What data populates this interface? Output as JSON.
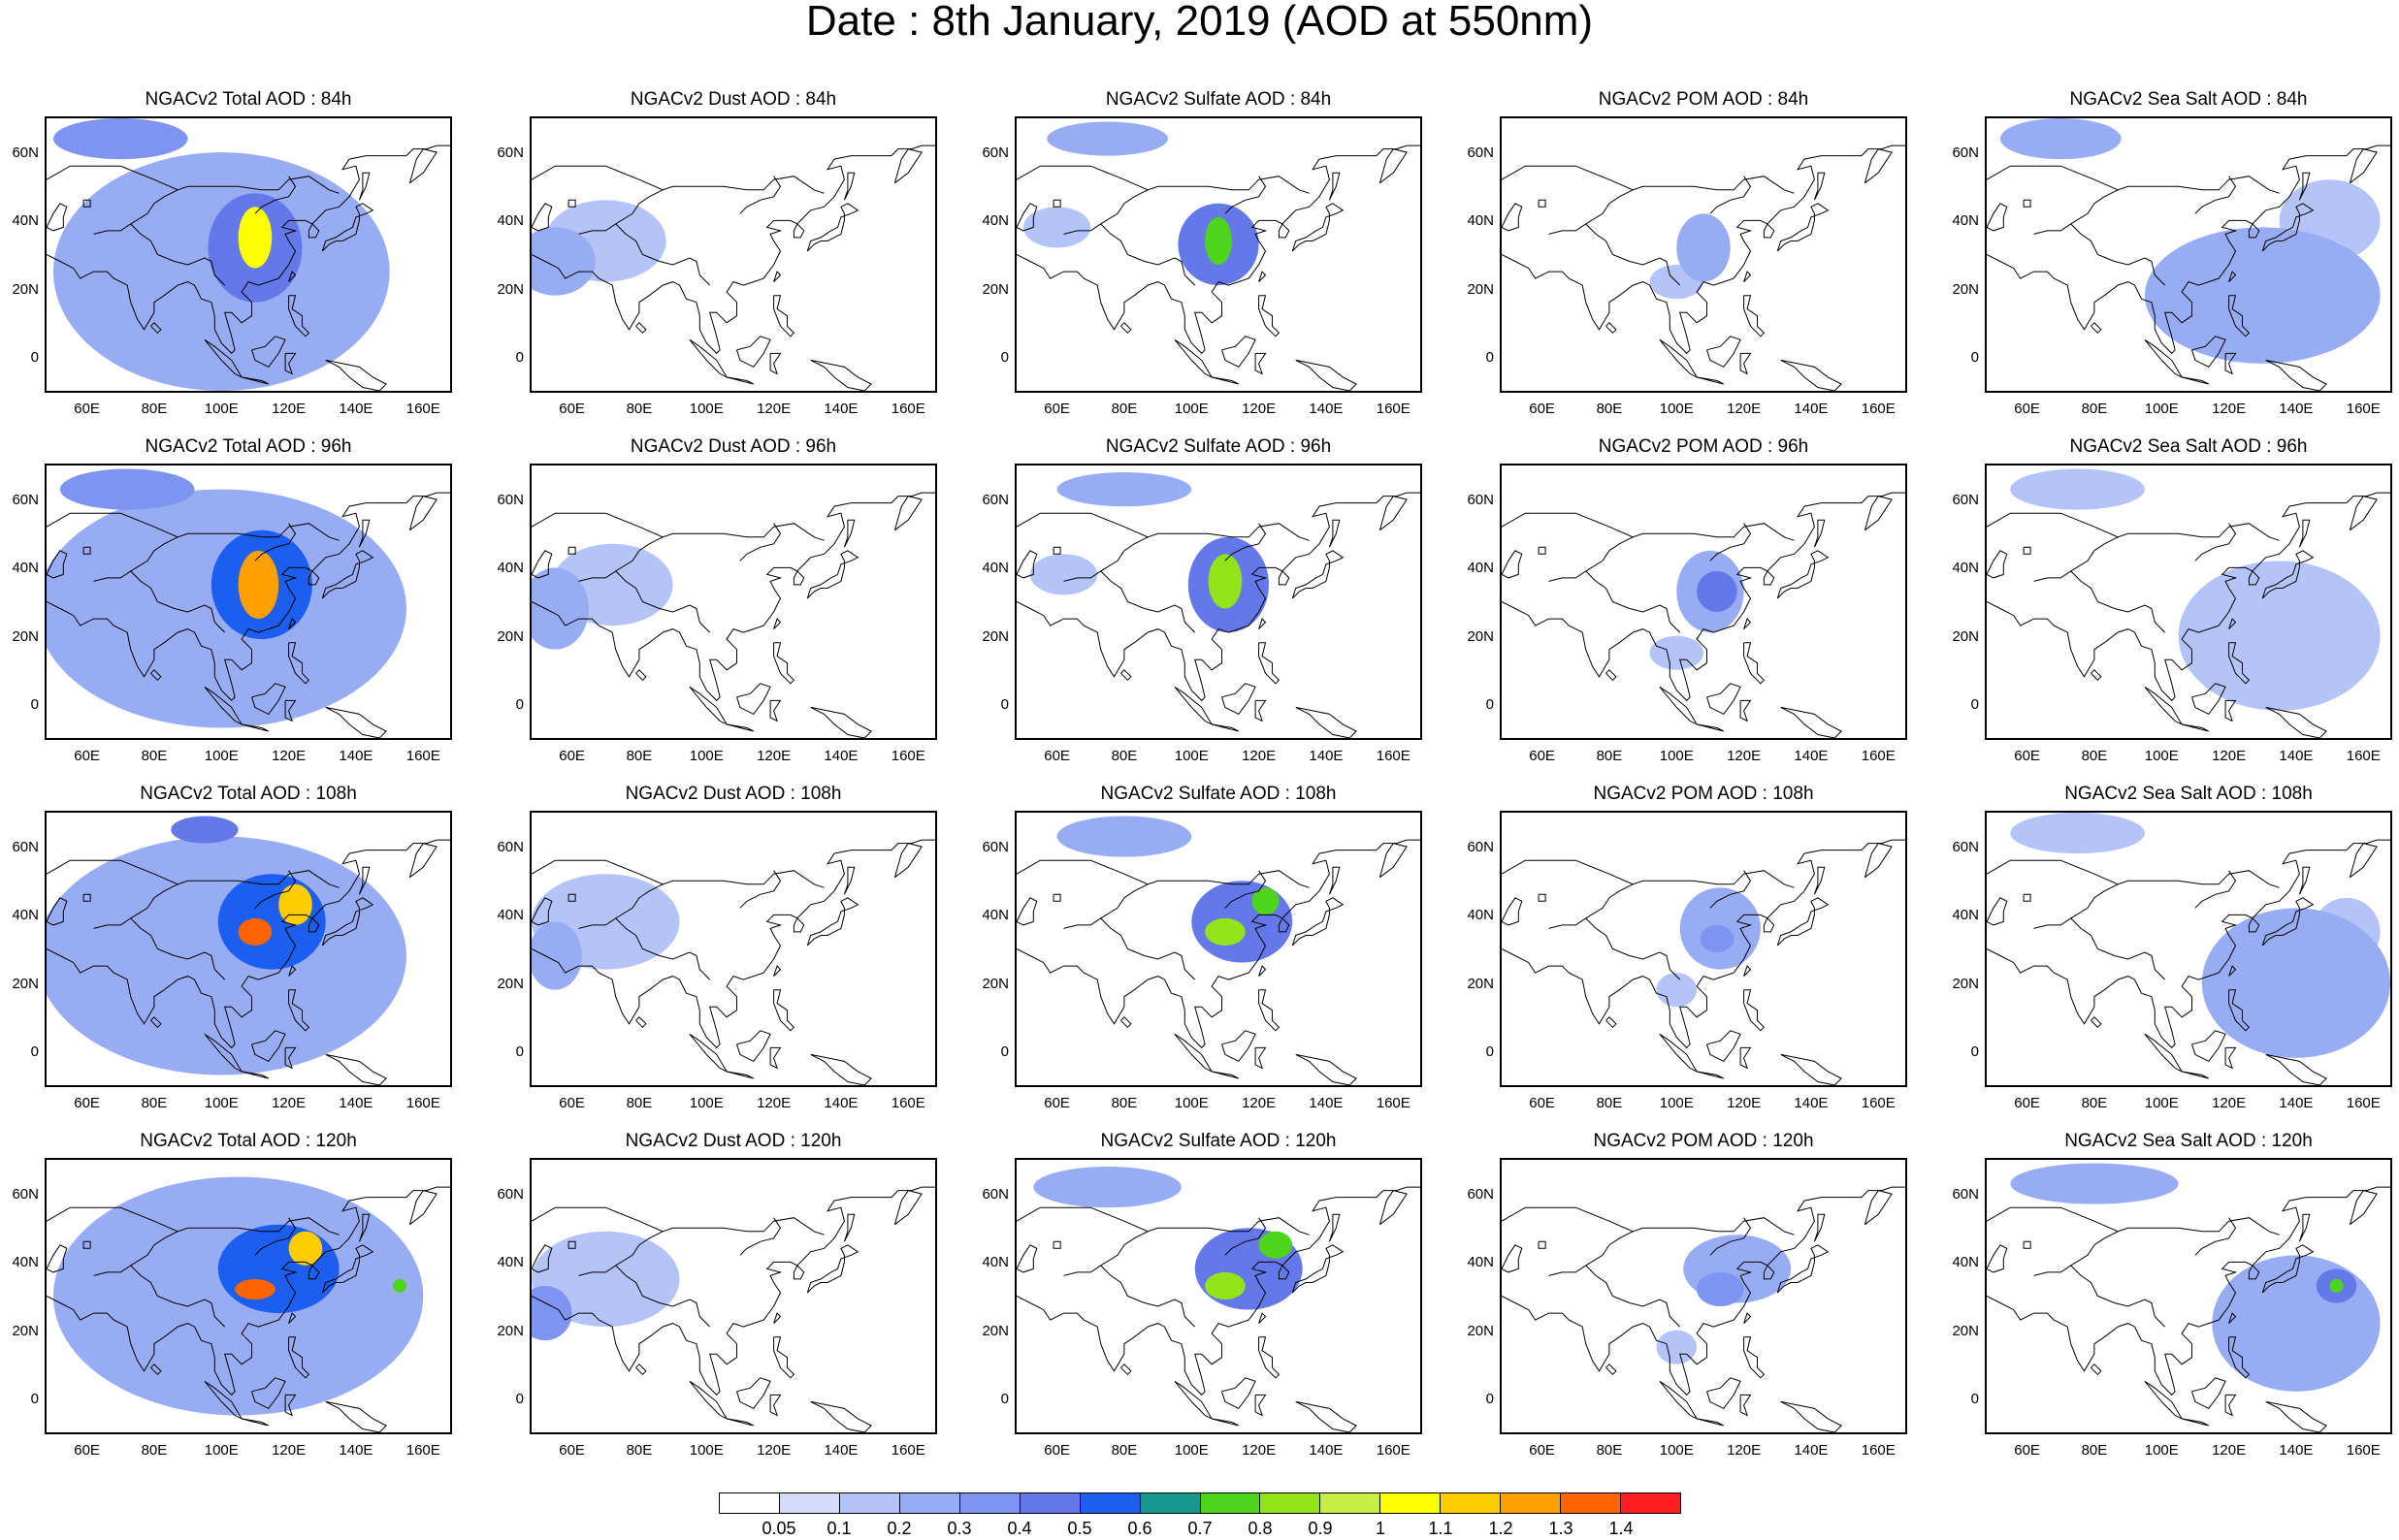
{
  "title": "Date : 8th January, 2019 (AOD at 550nm)",
  "lat_labels": [
    "60N",
    "40N",
    "20N",
    "0"
  ],
  "lon_labels": [
    "60E",
    "80E",
    "100E",
    "120E",
    "140E",
    "160E"
  ],
  "panels": [
    {
      "title": "NGACv2 Total AOD : 84h",
      "species": "total",
      "lead": 84
    },
    {
      "title": "NGACv2 Dust AOD : 84h",
      "species": "dust",
      "lead": 84
    },
    {
      "title": "NGACv2 Sulfate AOD : 84h",
      "species": "sulfate",
      "lead": 84
    },
    {
      "title": "NGACv2 POM AOD : 84h",
      "species": "pom",
      "lead": 84
    },
    {
      "title": "NGACv2 Sea Salt AOD : 84h",
      "species": "seasalt",
      "lead": 84
    },
    {
      "title": "NGACv2 Total AOD : 96h",
      "species": "total",
      "lead": 96
    },
    {
      "title": "NGACv2 Dust AOD : 96h",
      "species": "dust",
      "lead": 96
    },
    {
      "title": "NGACv2 Sulfate AOD : 96h",
      "species": "sulfate",
      "lead": 96
    },
    {
      "title": "NGACv2 POM AOD : 96h",
      "species": "pom",
      "lead": 96
    },
    {
      "title": "NGACv2 Sea Salt AOD : 96h",
      "species": "seasalt",
      "lead": 96
    },
    {
      "title": "NGACv2 Total AOD : 108h",
      "species": "total",
      "lead": 108
    },
    {
      "title": "NGACv2 Dust AOD : 108h",
      "species": "dust",
      "lead": 108
    },
    {
      "title": "NGACv2 Sulfate AOD : 108h",
      "species": "sulfate",
      "lead": 108
    },
    {
      "title": "NGACv2 POM AOD : 108h",
      "species": "pom",
      "lead": 108
    },
    {
      "title": "NGACv2 Sea Salt AOD : 108h",
      "species": "seasalt",
      "lead": 108
    },
    {
      "title": "NGACv2 Total AOD : 120h",
      "species": "total",
      "lead": 120
    },
    {
      "title": "NGACv2 Dust AOD : 120h",
      "species": "dust",
      "lead": 120
    },
    {
      "title": "NGACv2 Sulfate AOD : 120h",
      "species": "sulfate",
      "lead": 120
    },
    {
      "title": "NGACv2 POM AOD : 120h",
      "species": "pom",
      "lead": 120
    },
    {
      "title": "NGACv2 Sea Salt  AOD : 120h",
      "species": "seasalt",
      "lead": 120
    }
  ],
  "colorbar": {
    "labels": [
      "0.05",
      "0.1",
      "0.2",
      "0.3",
      "0.4",
      "0.5",
      "0.6",
      "0.7",
      "0.8",
      "0.9",
      "1",
      "1.1",
      "1.2",
      "1.3",
      "1.4"
    ],
    "colors": [
      "#ffffff",
      "#d4dcfa",
      "#b4c4f8",
      "#98acf4",
      "#7e94f0",
      "#6578ea",
      "#1c5ef0",
      "#18988c",
      "#4ed41a",
      "#92e418",
      "#c8ee46",
      "#ffff00",
      "#ffcc00",
      "#ffa000",
      "#ff6400",
      "#ff1e1e"
    ]
  },
  "map": {
    "projection": "cylindrical equidistant",
    "lon_range": [
      48,
      168
    ],
    "lat_range": [
      -10,
      70
    ],
    "coastline_color": "#000000",
    "grid": false
  },
  "features": {
    "total": {
      "84": [
        {
          "lon": 110,
          "lat": 35,
          "rx": 5,
          "ry": 9,
          "v": 1.0
        },
        {
          "lon": 110,
          "lat": 32,
          "rx": 14,
          "ry": 16,
          "v": 0.45
        },
        {
          "lon": 100,
          "lat": 25,
          "rx": 50,
          "ry": 35,
          "v": 0.22
        },
        {
          "lon": 70,
          "lat": 64,
          "rx": 20,
          "ry": 6,
          "v": 0.38
        }
      ],
      "96": [
        {
          "lon": 111,
          "lat": 35,
          "rx": 6,
          "ry": 10,
          "v": 1.2
        },
        {
          "lon": 112,
          "lat": 35,
          "rx": 15,
          "ry": 16,
          "v": 0.55
        },
        {
          "lon": 100,
          "lat": 28,
          "rx": 55,
          "ry": 35,
          "v": 0.25
        },
        {
          "lon": 72,
          "lat": 63,
          "rx": 20,
          "ry": 6,
          "v": 0.35
        }
      ],
      "108": [
        {
          "lon": 110,
          "lat": 35,
          "rx": 5,
          "ry": 4,
          "v": 1.35
        },
        {
          "lon": 122,
          "lat": 43,
          "rx": 5,
          "ry": 6,
          "v": 1.1
        },
        {
          "lon": 115,
          "lat": 38,
          "rx": 16,
          "ry": 14,
          "v": 0.55
        },
        {
          "lon": 100,
          "lat": 28,
          "rx": 55,
          "ry": 35,
          "v": 0.25
        },
        {
          "lon": 95,
          "lat": 65,
          "rx": 10,
          "ry": 4,
          "v": 0.4
        }
      ],
      "120": [
        {
          "lon": 110,
          "lat": 32,
          "rx": 6,
          "ry": 3,
          "v": 1.35
        },
        {
          "lon": 125,
          "lat": 44,
          "rx": 5,
          "ry": 5,
          "v": 1.1
        },
        {
          "lon": 117,
          "lat": 38,
          "rx": 18,
          "ry": 13,
          "v": 0.55
        },
        {
          "lon": 153,
          "lat": 33,
          "rx": 2,
          "ry": 2,
          "v": 0.75
        },
        {
          "lon": 105,
          "lat": 30,
          "rx": 55,
          "ry": 35,
          "v": 0.25
        }
      ]
    },
    "dust": {
      "84": [
        {
          "lon": 55,
          "lat": 28,
          "rx": 12,
          "ry": 10,
          "v": 0.25
        },
        {
          "lon": 70,
          "lat": 34,
          "rx": 18,
          "ry": 12,
          "v": 0.12
        }
      ],
      "96": [
        {
          "lon": 55,
          "lat": 28,
          "rx": 10,
          "ry": 12,
          "v": 0.22
        },
        {
          "lon": 72,
          "lat": 35,
          "rx": 18,
          "ry": 12,
          "v": 0.12
        }
      ],
      "108": [
        {
          "lon": 55,
          "lat": 28,
          "rx": 8,
          "ry": 10,
          "v": 0.2
        },
        {
          "lon": 70,
          "lat": 38,
          "rx": 22,
          "ry": 14,
          "v": 0.12
        }
      ],
      "120": [
        {
          "lon": 52,
          "lat": 25,
          "rx": 8,
          "ry": 8,
          "v": 0.35
        },
        {
          "lon": 70,
          "lat": 35,
          "rx": 22,
          "ry": 14,
          "v": 0.14
        }
      ]
    },
    "sulfate": {
      "84": [
        {
          "lon": 108,
          "lat": 34,
          "rx": 4,
          "ry": 7,
          "v": 0.75
        },
        {
          "lon": 108,
          "lat": 33,
          "rx": 12,
          "ry": 12,
          "v": 0.4
        },
        {
          "lon": 75,
          "lat": 64,
          "rx": 18,
          "ry": 5,
          "v": 0.2
        },
        {
          "lon": 60,
          "lat": 38,
          "rx": 10,
          "ry": 6,
          "v": 0.18
        }
      ],
      "96": [
        {
          "lon": 110,
          "lat": 36,
          "rx": 5,
          "ry": 8,
          "v": 0.8
        },
        {
          "lon": 111,
          "lat": 35,
          "rx": 12,
          "ry": 14,
          "v": 0.4
        },
        {
          "lon": 80,
          "lat": 63,
          "rx": 20,
          "ry": 5,
          "v": 0.2
        },
        {
          "lon": 62,
          "lat": 38,
          "rx": 10,
          "ry": 6,
          "v": 0.18
        }
      ],
      "108": [
        {
          "lon": 110,
          "lat": 35,
          "rx": 6,
          "ry": 4,
          "v": 0.85
        },
        {
          "lon": 122,
          "lat": 44,
          "rx": 4,
          "ry": 4,
          "v": 0.78
        },
        {
          "lon": 115,
          "lat": 38,
          "rx": 15,
          "ry": 12,
          "v": 0.4
        },
        {
          "lon": 80,
          "lat": 63,
          "rx": 20,
          "ry": 6,
          "v": 0.22
        }
      ],
      "120": [
        {
          "lon": 110,
          "lat": 33,
          "rx": 6,
          "ry": 4,
          "v": 0.85
        },
        {
          "lon": 125,
          "lat": 45,
          "rx": 5,
          "ry": 4,
          "v": 0.78
        },
        {
          "lon": 117,
          "lat": 38,
          "rx": 16,
          "ry": 12,
          "v": 0.4
        },
        {
          "lon": 75,
          "lat": 62,
          "rx": 22,
          "ry": 6,
          "v": 0.22
        }
      ]
    },
    "pom": {
      "84": [
        {
          "lon": 108,
          "lat": 32,
          "rx": 8,
          "ry": 10,
          "v": 0.2
        },
        {
          "lon": 100,
          "lat": 22,
          "rx": 8,
          "ry": 5,
          "v": 0.12
        }
      ],
      "96": [
        {
          "lon": 112,
          "lat": 33,
          "rx": 6,
          "ry": 6,
          "v": 0.4
        },
        {
          "lon": 110,
          "lat": 33,
          "rx": 10,
          "ry": 12,
          "v": 0.2
        },
        {
          "lon": 100,
          "lat": 15,
          "rx": 8,
          "ry": 5,
          "v": 0.12
        }
      ],
      "108": [
        {
          "lon": 112,
          "lat": 33,
          "rx": 5,
          "ry": 4,
          "v": 0.35
        },
        {
          "lon": 113,
          "lat": 36,
          "rx": 12,
          "ry": 12,
          "v": 0.2
        },
        {
          "lon": 100,
          "lat": 18,
          "rx": 6,
          "ry": 5,
          "v": 0.12
        }
      ],
      "120": [
        {
          "lon": 113,
          "lat": 32,
          "rx": 7,
          "ry": 5,
          "v": 0.35
        },
        {
          "lon": 118,
          "lat": 38,
          "rx": 16,
          "ry": 10,
          "v": 0.2
        },
        {
          "lon": 100,
          "lat": 15,
          "rx": 6,
          "ry": 5,
          "v": 0.12
        }
      ]
    },
    "seasalt": {
      "84": [
        {
          "lon": 130,
          "lat": 18,
          "rx": 35,
          "ry": 20,
          "v": 0.22
        },
        {
          "lon": 70,
          "lat": 64,
          "rx": 18,
          "ry": 6,
          "v": 0.2
        },
        {
          "lon": 150,
          "lat": 40,
          "rx": 15,
          "ry": 12,
          "v": 0.14
        }
      ],
      "96": [
        {
          "lon": 135,
          "lat": 20,
          "rx": 30,
          "ry": 22,
          "v": 0.18
        },
        {
          "lon": 75,
          "lat": 63,
          "rx": 20,
          "ry": 6,
          "v": 0.15
        }
      ],
      "108": [
        {
          "lon": 140,
          "lat": 20,
          "rx": 28,
          "ry": 22,
          "v": 0.22
        },
        {
          "lon": 75,
          "lat": 64,
          "rx": 20,
          "ry": 6,
          "v": 0.15
        },
        {
          "lon": 155,
          "lat": 35,
          "rx": 10,
          "ry": 10,
          "v": 0.14
        }
      ],
      "120": [
        {
          "lon": 152,
          "lat": 33,
          "rx": 2,
          "ry": 2,
          "v": 0.75
        },
        {
          "lon": 152,
          "lat": 33,
          "rx": 6,
          "ry": 5,
          "v": 0.45
        },
        {
          "lon": 140,
          "lat": 22,
          "rx": 25,
          "ry": 20,
          "v": 0.22
        },
        {
          "lon": 80,
          "lat": 63,
          "rx": 25,
          "ry": 6,
          "v": 0.2
        }
      ]
    }
  }
}
